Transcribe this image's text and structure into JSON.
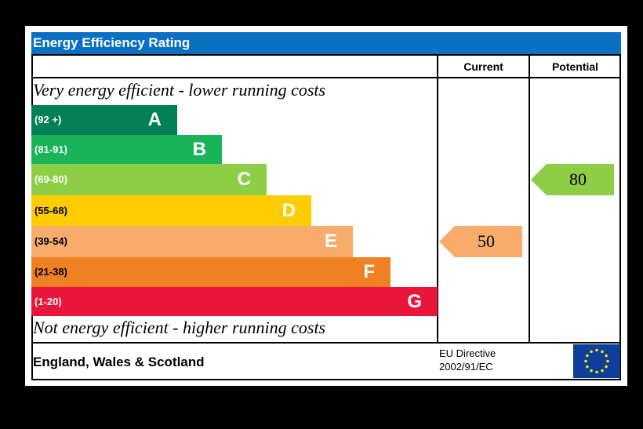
{
  "title": "Energy Efficiency Rating",
  "columns": {
    "current": "Current",
    "potential": "Potential"
  },
  "top_text": "Very energy efficient - lower running costs",
  "bottom_text": "Not energy efficient - higher running costs",
  "footer": {
    "region": "England, Wales & Scotland",
    "directive_line1": "EU Directive",
    "directive_line2": "2002/91/EC",
    "flag": "eu-flag-icon"
  },
  "chart_data": {
    "type": "bar",
    "title": "Energy Efficiency Rating",
    "bands": [
      {
        "letter": "A",
        "range": "(92 +)",
        "color": "#008054"
      },
      {
        "letter": "B",
        "range": "(81-91)",
        "color": "#19b459"
      },
      {
        "letter": "C",
        "range": "(69-80)",
        "color": "#8dce46"
      },
      {
        "letter": "D",
        "range": "(55-68)",
        "color": "#ffcc00"
      },
      {
        "letter": "E",
        "range": "(39-54)",
        "color": "#f7ac6b"
      },
      {
        "letter": "F",
        "range": "(21-38)",
        "color": "#ef8023"
      },
      {
        "letter": "G",
        "range": "(1-20)",
        "color": "#e9153b"
      }
    ],
    "current": {
      "value": 50,
      "band": "E",
      "color": "#f7ac6b"
    },
    "potential": {
      "value": 80,
      "band": "C",
      "color": "#8dce46"
    }
  }
}
